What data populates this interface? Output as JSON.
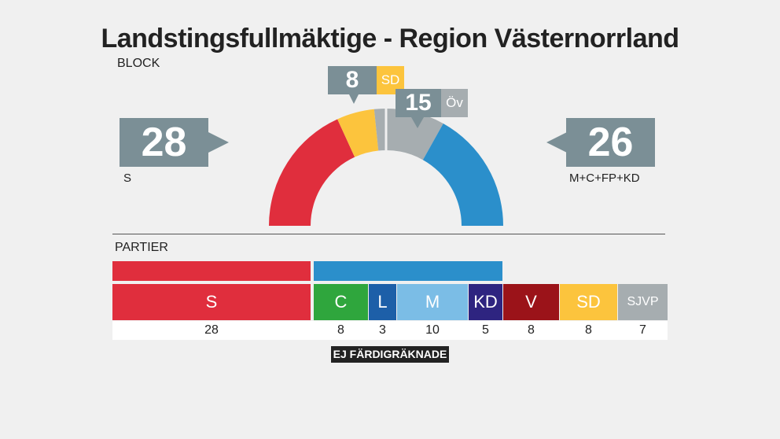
{
  "title": "Landstingsfullmäktige - Region Västernorrland",
  "block_label": "BLOCK",
  "parties_label": "PARTIER",
  "status": "EJ FÄRDIGRÄKNADE",
  "left_block": {
    "seats": "28",
    "label": "S"
  },
  "right_block": {
    "seats": "26",
    "label": "M+C+FP+KD"
  },
  "sd_bubble": {
    "seats": "8",
    "tag": "SD"
  },
  "ov_bubble": {
    "seats": "15",
    "tag": "Öv"
  },
  "colors": {
    "S": "#e02e3d",
    "C": "#2fa63d",
    "L": "#1d5fa8",
    "M": "#7bbde6",
    "KD": "#2e2480",
    "V": "#9b1319",
    "SD": "#fcc43d",
    "SJVP": "#a6adb0",
    "right_block": "#2b8fcb",
    "ov": "#a6adb0",
    "bubble": "#7b8f96"
  },
  "chart_data": {
    "type": "bar",
    "categories": [
      "S",
      "C",
      "L",
      "M",
      "KD",
      "V",
      "SD",
      "SJVP"
    ],
    "values": [
      28,
      8,
      3,
      10,
      5,
      8,
      8,
      7
    ],
    "arc": [
      {
        "name": "S",
        "value": 28
      },
      {
        "name": "SD",
        "value": 8
      },
      {
        "name": "Öv",
        "value": 15
      },
      {
        "name": "M+C+FP+KD",
        "value": 26
      }
    ]
  }
}
